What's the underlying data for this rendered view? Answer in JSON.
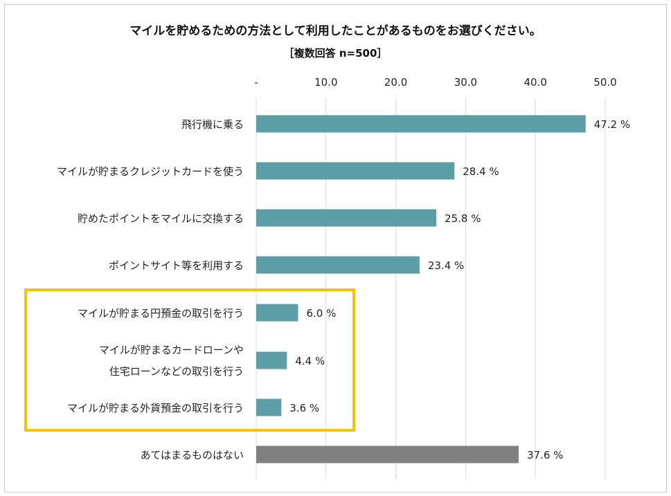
{
  "chart_data": {
    "type": "bar",
    "orientation": "horizontal",
    "title": "マイルを貯めるための方法として利用したことがあるものをお選びください。",
    "subtitle": "［複数回答 n=500］",
    "xlim": [
      0,
      50
    ],
    "ticks": [
      "-",
      "10.0",
      "20.0",
      "30.0",
      "40.0",
      "50.0"
    ],
    "grid": true,
    "value_suffix": " %",
    "categories": [
      [
        "飛行機に乗る"
      ],
      [
        "マイルが貯まるクレジットカードを使う"
      ],
      [
        "貯めたポイントをマイルに交換する"
      ],
      [
        "ポイントサイト等を利用する"
      ],
      [
        "マイルが貯まる円預金の取引を行う"
      ],
      [
        "マイルが貯まるカードローンや",
        "住宅ローンなどの取引を行う"
      ],
      [
        "マイルが貯まる外貨預金の取引を行う"
      ],
      [
        "あてはまるものはない"
      ]
    ],
    "values": [
      47.2,
      28.4,
      25.8,
      23.4,
      6.0,
      4.4,
      3.6,
      37.6
    ],
    "colors": {
      "bar": "#5b9ea6",
      "bar_none": "#808080",
      "highlight_box": "#f5c400",
      "grid": "#d9d9d9"
    },
    "highlight": {
      "from_index": 4,
      "to_index": 6
    }
  }
}
